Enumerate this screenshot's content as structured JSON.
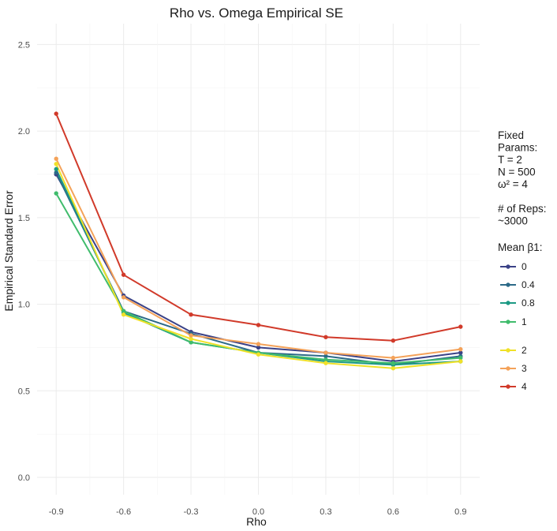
{
  "chart_data": {
    "type": "line",
    "title": "Rho vs. Omega Empirical SE",
    "xlabel": "Rho",
    "ylabel": "Empirical Standard Error",
    "x": [
      -0.9,
      -0.6,
      -0.3,
      0.0,
      0.3,
      0.6,
      0.9
    ],
    "x_tick_labels": [
      "-0.9",
      "-0.6",
      "-0.3",
      "0.0",
      "0.3",
      "0.6",
      "0.9"
    ],
    "y_tick_values": [
      0.0,
      0.5,
      1.0,
      1.5,
      2.0,
      2.5
    ],
    "y_tick_labels": [
      "0.0",
      "0.5",
      "1.0",
      "1.5",
      "2.0",
      "2.5"
    ],
    "xlim": [
      -0.985,
      0.985
    ],
    "ylim": [
      -0.1,
      2.62
    ],
    "grid": true,
    "legend_position": "right",
    "legend_info_lines": [
      "Fixed",
      "Params:",
      "T = 2",
      "N = 500",
      "ω² = 4",
      "",
      "# of Reps:",
      "~3000"
    ],
    "legend_title": "Mean β1:",
    "series": [
      {
        "name": "0",
        "color": "#3b4287",
        "values": [
          1.75,
          1.05,
          0.84,
          0.75,
          0.72,
          0.67,
          0.72
        ]
      },
      {
        "name": "0.4",
        "color": "#2c6a88",
        "values": [
          1.76,
          0.96,
          0.83,
          0.72,
          0.7,
          0.65,
          0.7
        ]
      },
      {
        "name": "0.8",
        "color": "#1c9a84",
        "values": [
          1.78,
          0.95,
          0.78,
          0.72,
          0.67,
          0.65,
          0.67
        ]
      },
      {
        "name": "1",
        "color": "#40bc6c",
        "values": [
          1.64,
          0.96,
          0.78,
          0.72,
          0.68,
          0.66,
          0.69
        ]
      },
      {
        "name": "2",
        "color": "#f0e128",
        "values": [
          1.81,
          0.94,
          0.8,
          0.71,
          0.66,
          0.63,
          0.67
        ]
      },
      {
        "name": "3",
        "color": "#f4a259",
        "values": [
          1.84,
          1.04,
          0.82,
          0.77,
          0.72,
          0.69,
          0.74
        ]
      },
      {
        "name": "4",
        "color": "#d13a2a",
        "values": [
          2.1,
          1.17,
          0.94,
          0.88,
          0.81,
          0.79,
          0.87
        ]
      }
    ]
  }
}
